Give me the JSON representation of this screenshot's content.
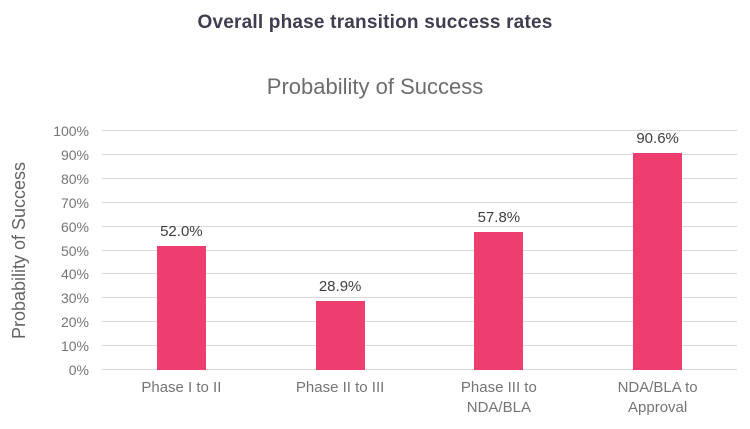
{
  "page_title": "Overall phase transition success rates",
  "chart_data": {
    "type": "bar",
    "title": "Probability of Success",
    "categories": [
      "Phase I to II",
      "Phase II to III",
      "Phase III to NDA/BLA",
      "NDA/BLA to Approval"
    ],
    "values": [
      52.0,
      28.9,
      57.8,
      90.6
    ],
    "data_labels": [
      "52.0%",
      "28.9%",
      "57.8%",
      "90.6%"
    ],
    "xlabel": "",
    "ylabel": "Probability of Success",
    "ylim": [
      0,
      100
    ],
    "ytick_step": 10,
    "ytick_labels": [
      "0%",
      "10%",
      "20%",
      "30%",
      "40%",
      "50%",
      "60%",
      "70%",
      "80%",
      "90%",
      "100%"
    ],
    "grid": true,
    "legend": false,
    "colors": {
      "bar": "#ee3d6f",
      "main_title": "#3e3e50",
      "chart_title": "#6d6d6d",
      "axis_text": "#757575",
      "data_label": "#3f3f3f",
      "gridline": "#d9d9d9"
    }
  }
}
